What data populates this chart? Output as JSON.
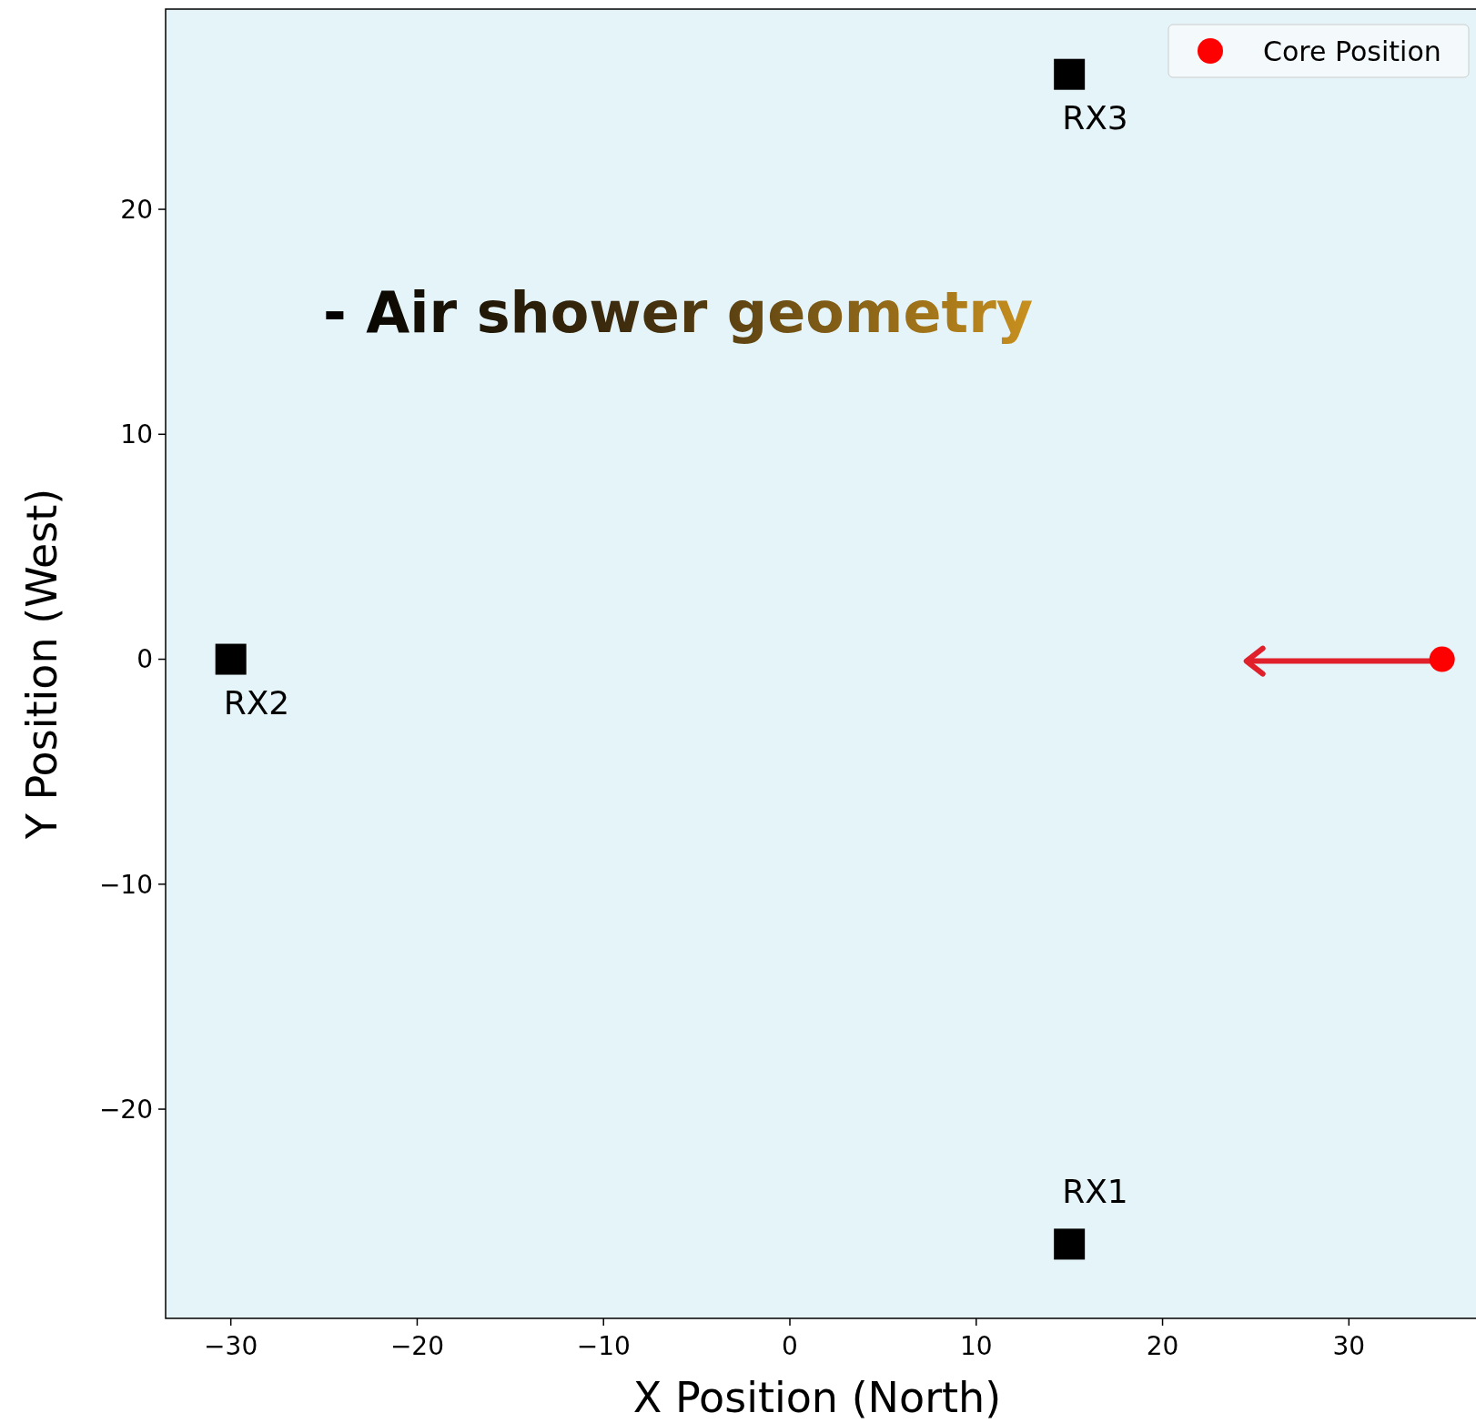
{
  "chart_data": {
    "type": "scatter",
    "xlabel": "X Position (North)",
    "ylabel": "Y Position (West)",
    "xlim": [
      -33.5,
      37.7
    ],
    "ylim": [
      -29.3,
      28.9
    ],
    "xticks": [
      {
        "value": -30,
        "label": "−30"
      },
      {
        "value": -20,
        "label": "−20"
      },
      {
        "value": -10,
        "label": "−10"
      },
      0,
      10,
      20,
      30
    ],
    "yticks": [
      {
        "value": -20,
        "label": "−20"
      },
      {
        "value": -10,
        "label": "−10"
      },
      0,
      10,
      20
    ],
    "grid": false,
    "legend": "top right",
    "series": [
      {
        "color": "#000000",
        "marker": "square",
        "x": [
          15,
          -30,
          15
        ],
        "values": [
          -26,
          0,
          26
        ]
      },
      {
        "name": "Core Position",
        "color": "#ff0000",
        "marker": "circle",
        "x": [
          35
        ],
        "values": [
          0
        ]
      }
    ],
    "annotations": [
      "- Air shower geometry",
      "RX1",
      "RX2",
      "RX3"
    ]
  }
}
